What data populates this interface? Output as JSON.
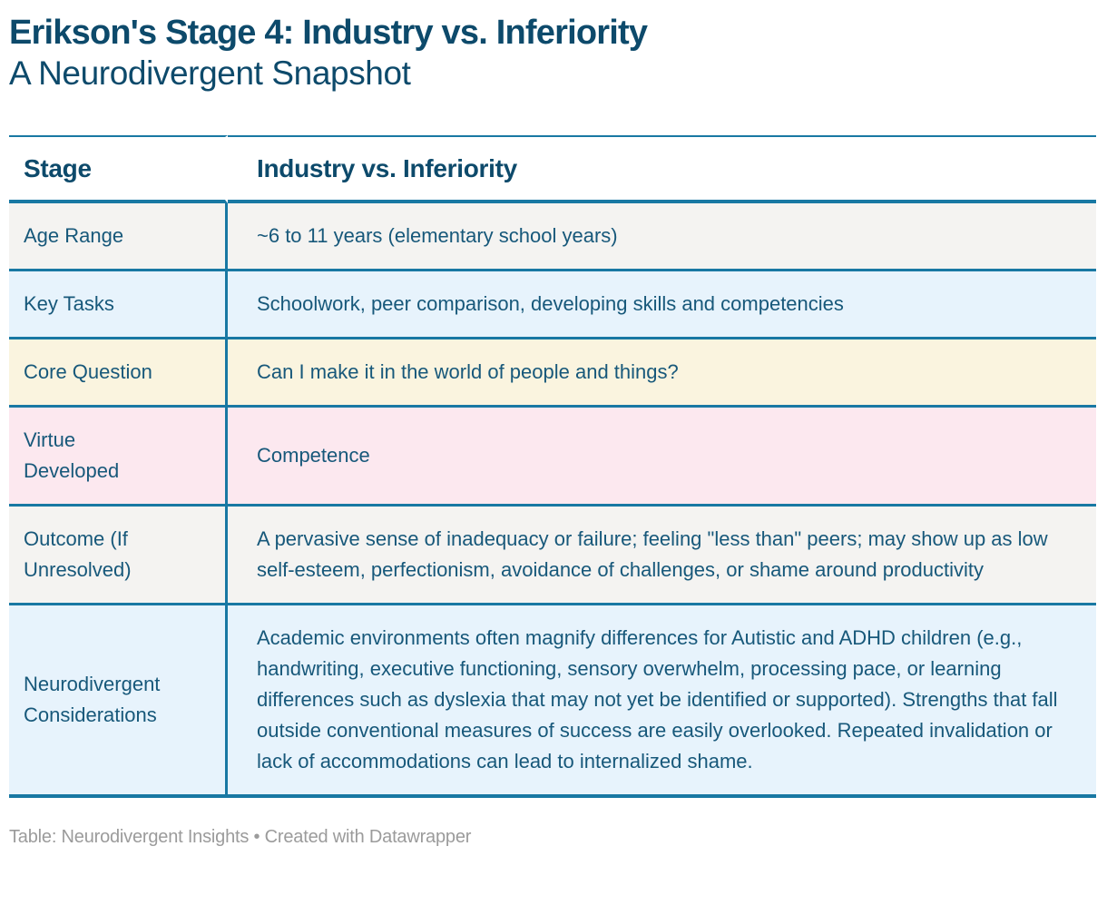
{
  "theme": {
    "accent": "#1878a3",
    "title_color": "#0d4a6b",
    "text_color": "#17587a",
    "footer_color": "#9b9b9b",
    "page_bg": "#ffffff"
  },
  "chart_data": {
    "type": "table",
    "title": "Erikson's Stage 4: Industry vs. Inferiority",
    "subtitle": "A Neurodivergent Snapshot",
    "columns": [
      "Stage",
      "Industry vs. Inferiority"
    ],
    "rows": [
      {
        "label": "Age Range",
        "value": "~6 to 11 years (elementary school years)",
        "bg": "#f4f3f1"
      },
      {
        "label": "Key Tasks",
        "value": "Schoolwork, peer comparison, developing skills and competencies",
        "bg": "#e7f3fc"
      },
      {
        "label": "Core Question",
        "value": "Can I make it in the world of people and things?",
        "bg": "#faf4df"
      },
      {
        "label": "Virtue Developed",
        "value": "Competence",
        "bg": "#fce8ef"
      },
      {
        "label": "Outcome (If Unresolved)",
        "value": "A pervasive sense of inadequacy or failure; feeling \"less than\" peers; may show up as low self-esteem, perfectionism, avoidance of challenges, or shame around productivity",
        "bg": "#f4f3f1"
      },
      {
        "label": "Neurodivergent Considerations",
        "value": "Academic environments often magnify differences for Autistic and ADHD children (e.g., handwriting, executive functioning, sensory overwhelm, processing pace, or learning differences such as dyslexia that may not yet be identified or supported). Strengths that fall outside conventional measures of success are easily overlooked. Repeated invalidation or lack of accommodations can lead to internalized shame.",
        "bg": "#e7f3fc"
      }
    ],
    "attribution": "Table: Neurodivergent Insights • Created with Datawrapper",
    "layout": {
      "legend": "none",
      "grid": "row-borders",
      "header_position": "top"
    }
  }
}
